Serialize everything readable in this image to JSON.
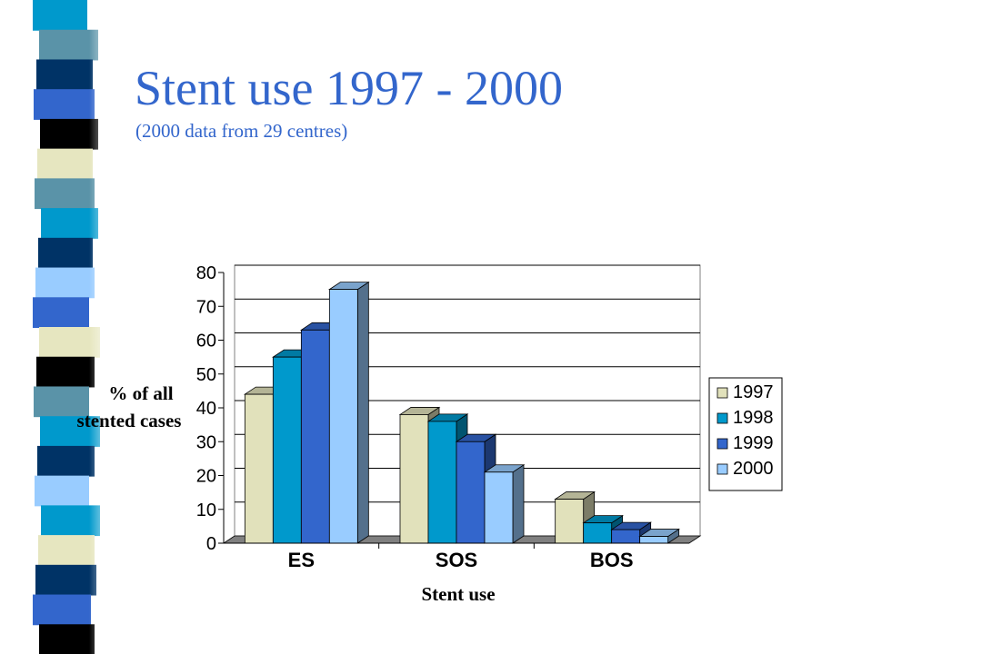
{
  "title": "Stent use 1997 - 2000",
  "subtitle": "(2000 data from 29 centres)",
  "colors": {
    "title": "#3366cc",
    "stripes": [
      "#0099cc",
      "#5a93a8",
      "#003366",
      "#3366cc",
      "#000000",
      "#e6e6c0",
      "#5a93a8",
      "#0099cc",
      "#003366",
      "#99ccff",
      "#3366cc",
      "#e6e6c0",
      "#000000",
      "#5a93a8",
      "#0099cc",
      "#003366",
      "#99ccff",
      "#0099cc",
      "#e6e6c0",
      "#003366",
      "#3366cc",
      "#000000"
    ]
  },
  "chart_data": {
    "type": "bar",
    "style": "3d-clustered-column",
    "categories": [
      "ES",
      "SOS",
      "BOS"
    ],
    "series": [
      {
        "name": "1997",
        "color": "#e1e1bb",
        "values": [
          44,
          38,
          13
        ]
      },
      {
        "name": "1998",
        "color": "#0099cc",
        "values": [
          55,
          36,
          6
        ]
      },
      {
        "name": "1999",
        "color": "#3366cc",
        "values": [
          63,
          30,
          4
        ]
      },
      {
        "name": "2000",
        "color": "#99ccff",
        "values": [
          75,
          21,
          2
        ]
      }
    ],
    "ylabel": [
      "% of all",
      "stented cases"
    ],
    "xlabel": "Stent use",
    "ylim": [
      0,
      80
    ],
    "yticks": [
      "0",
      "10",
      "20",
      "30",
      "40",
      "50",
      "60",
      "70",
      "80"
    ],
    "grid": true,
    "legend": "right"
  }
}
